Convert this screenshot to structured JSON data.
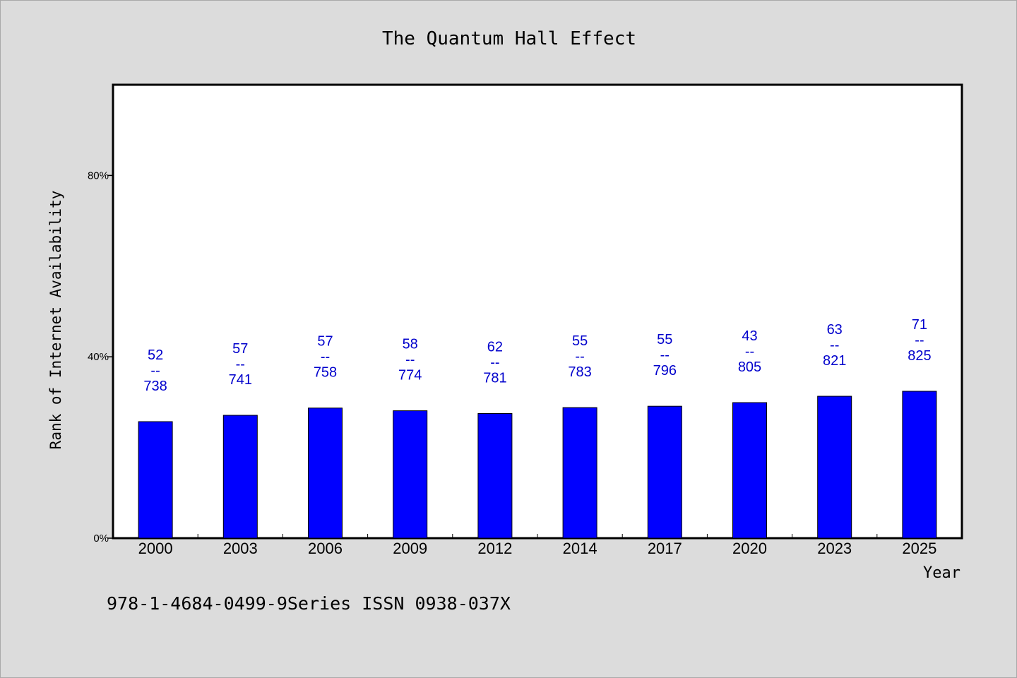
{
  "footer_text": "978-1-4684-0499-9Series ISSN 0938-037X",
  "colors": {
    "background": "#dcdcdc",
    "plot_background": "#ffffff",
    "bar_fill": "#0000ff",
    "label_color": "#0000cc",
    "axis_color": "#000000"
  },
  "chart_data": {
    "type": "bar",
    "title": "The Quantum Hall Effect",
    "xlabel": "Year",
    "ylabel": "Rank of Internet Availability",
    "categories": [
      "2000",
      "2003",
      "2006",
      "2009",
      "2012",
      "2014",
      "2017",
      "2020",
      "2023",
      "2025"
    ],
    "values": [
      25.7,
      27.1,
      28.7,
      28.1,
      27.5,
      28.8,
      29.1,
      29.9,
      31.3,
      32.4
    ],
    "bar_labels": [
      {
        "top": "52",
        "mid": "--",
        "bottom": "738"
      },
      {
        "top": "57",
        "mid": "--",
        "bottom": "741"
      },
      {
        "top": "57",
        "mid": "--",
        "bottom": "758"
      },
      {
        "top": "58",
        "mid": "--",
        "bottom": "774"
      },
      {
        "top": "62",
        "mid": "--",
        "bottom": "781"
      },
      {
        "top": "55",
        "mid": "--",
        "bottom": "783"
      },
      {
        "top": "55",
        "mid": "--",
        "bottom": "796"
      },
      {
        "top": "43",
        "mid": "--",
        "bottom": "805"
      },
      {
        "top": "63",
        "mid": "--",
        "bottom": "821"
      },
      {
        "top": "71",
        "mid": "--",
        "bottom": "825"
      }
    ],
    "ylim": [
      0,
      100
    ],
    "yticks": [
      0,
      40,
      80
    ],
    "ytick_labels": [
      "0%",
      "40%",
      "80%"
    ],
    "grid": false,
    "legend": "none"
  }
}
